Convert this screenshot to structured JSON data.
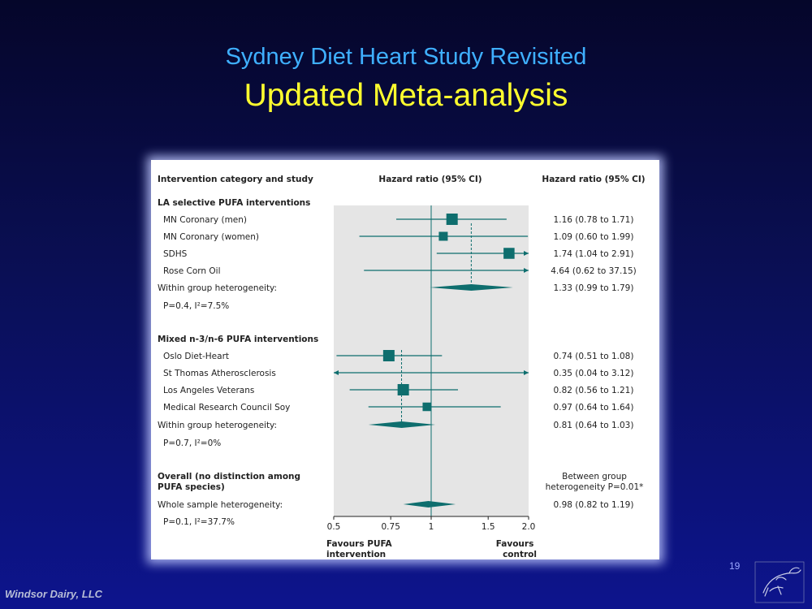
{
  "slide": {
    "title": "Sydney Diet Heart Study Revisited",
    "subtitle": "Updated Meta-analysis",
    "page_number": "19",
    "footer_brand": "Windsor Dairy, LLC",
    "colors": {
      "title": "#3fb0ff",
      "subtitle": "#ffff2e",
      "marker": "#0e6e6e",
      "plot_bg": "#e5e5e5"
    }
  },
  "chart_data": {
    "type": "forest",
    "header": {
      "col1": "Intervention category and study",
      "col2": "Hazard ratio (95% CI)",
      "col3": "Hazard ratio (95% CI)"
    },
    "x_scale": "log",
    "xlim": [
      0.5,
      2.0
    ],
    "ticks": [
      "0.5",
      "0.75",
      "1",
      "1.5",
      "2.0"
    ],
    "tick_values": [
      0.5,
      0.75,
      1,
      1.5,
      2.0
    ],
    "xlabel_left": "Favours PUFA intervention",
    "xlabel_right": "Favours control",
    "groups": [
      {
        "label": "LA selective PUFA interventions",
        "studies": [
          {
            "name": "MN Coronary (men)",
            "hr": 1.16,
            "lo": 0.78,
            "hi": 1.71,
            "ci_text": "1.16 (0.78 to 1.71)",
            "weight": 1.0
          },
          {
            "name": "MN Coronary (women)",
            "hr": 1.09,
            "lo": 0.6,
            "hi": 1.99,
            "ci_text": "1.09 (0.60 to 1.99)",
            "weight": 0.7
          },
          {
            "name": "SDHS",
            "hr": 1.74,
            "lo": 1.04,
            "hi": 2.91,
            "ci_text": "1.74 (1.04 to 2.91)",
            "weight": 0.95
          },
          {
            "name": "Rose Corn Oil",
            "hr": 4.64,
            "lo": 0.62,
            "hi": 37.15,
            "ci_text": "4.64 (0.62 to 37.15)",
            "weight": 0.3
          }
        ],
        "heterogeneity_label": "Within group heterogeneity:",
        "heterogeneity_stats": "P=0.4, I²=7.5%",
        "pooled": {
          "hr": 1.33,
          "lo": 0.99,
          "hi": 1.79,
          "ci_text": "1.33 (0.99 to 1.79)"
        }
      },
      {
        "label": "Mixed n-3/n-6 PUFA interventions",
        "studies": [
          {
            "name": "Oslo Diet-Heart",
            "hr": 0.74,
            "lo": 0.51,
            "hi": 1.08,
            "ci_text": "0.74 (0.51 to 1.08)",
            "weight": 1.0
          },
          {
            "name": "St Thomas Atherosclerosis",
            "hr": 0.35,
            "lo": 0.04,
            "hi": 3.12,
            "ci_text": "0.35 (0.04 to 3.12)",
            "weight": 0.0
          },
          {
            "name": "Los Angeles Veterans",
            "hr": 0.82,
            "lo": 0.56,
            "hi": 1.21,
            "ci_text": "0.82 (0.56 to 1.21)",
            "weight": 1.0
          },
          {
            "name": "Medical Research Council Soy",
            "hr": 0.97,
            "lo": 0.64,
            "hi": 1.64,
            "ci_text": "0.97 (0.64 to 1.64)",
            "weight": 0.65
          }
        ],
        "heterogeneity_label": "Within group heterogeneity:",
        "heterogeneity_stats": "P=0.7, I²=0%",
        "pooled": {
          "hr": 0.81,
          "lo": 0.64,
          "hi": 1.03,
          "ci_text": "0.81 (0.64 to 1.03)"
        }
      }
    ],
    "overall": {
      "label": "Overall (no distinction among PUFA species)",
      "label_lines": [
        "Overall (no distinction among",
        "PUFA species)"
      ],
      "between_group_lines": [
        "Between group",
        "heterogeneity P=0.01*"
      ],
      "heterogeneity_label": "Whole sample heterogeneity:",
      "heterogeneity_stats": "P=0.1, I²=37.7%",
      "pooled": {
        "hr": 0.98,
        "lo": 0.82,
        "hi": 1.19,
        "ci_text": "0.98 (0.82 to 1.19)"
      }
    }
  }
}
